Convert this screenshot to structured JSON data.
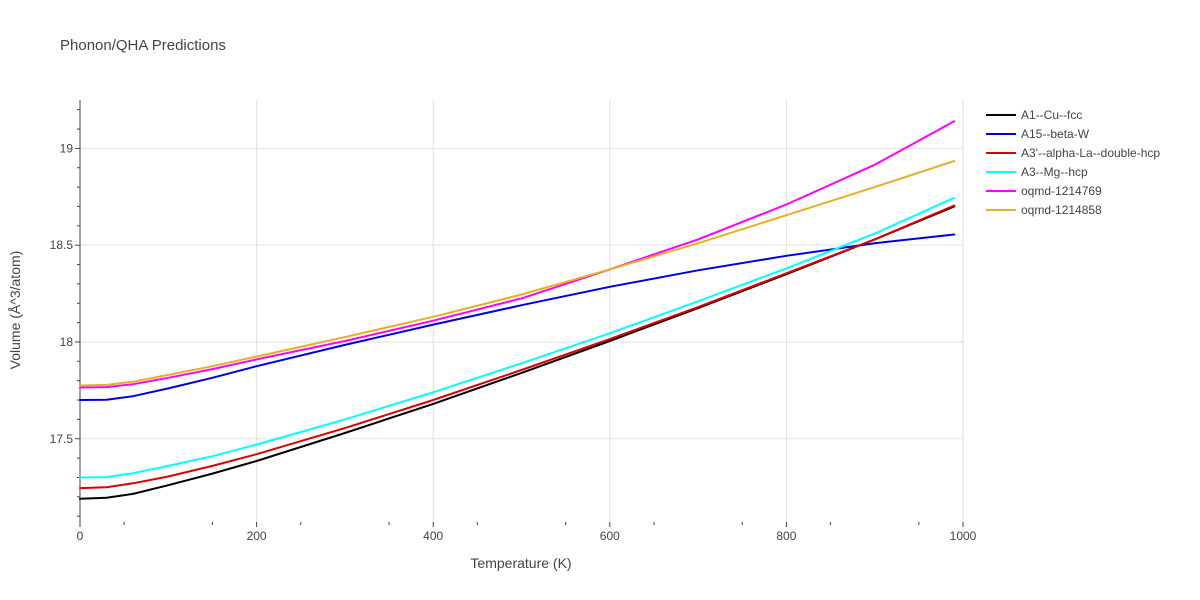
{
  "chart_data": {
    "type": "line",
    "title": "Phonon/QHA Predictions",
    "xlabel": "Temperature (K)",
    "ylabel": "Volume (Å^3/atom)",
    "xlim": [
      0,
      1000
    ],
    "ylim": [
      17.07,
      19.25
    ],
    "x_ticks": [
      {
        "value": 0,
        "label": "0"
      },
      {
        "value": 200,
        "label": "200"
      },
      {
        "value": 400,
        "label": "400"
      },
      {
        "value": 600,
        "label": "600"
      },
      {
        "value": 800,
        "label": "800"
      },
      {
        "value": 1000,
        "label": "1000"
      }
    ],
    "y_ticks": [
      {
        "value": 17.5,
        "label": "17.5"
      },
      {
        "value": 18,
        "label": "18"
      },
      {
        "value": 18.5,
        "label": "18.5"
      },
      {
        "value": 19,
        "label": "19"
      }
    ],
    "grid": true,
    "legend_position": "right",
    "x": [
      0,
      30,
      60,
      100,
      150,
      200,
      300,
      400,
      500,
      600,
      700,
      800,
      900,
      990
    ],
    "series": [
      {
        "name": "A1--Cu--fcc",
        "color": "#000000",
        "values": [
          17.19,
          17.195,
          17.215,
          17.26,
          17.32,
          17.385,
          17.53,
          17.68,
          17.84,
          18.005,
          18.175,
          18.35,
          18.53,
          18.7
        ]
      },
      {
        "name": "A15--beta-W",
        "color": "#0000dd",
        "values": [
          17.7,
          17.702,
          17.72,
          17.76,
          17.815,
          17.875,
          17.985,
          18.09,
          18.19,
          18.285,
          18.37,
          18.445,
          18.51,
          18.555
        ]
      },
      {
        "name": "A3'--alpha-La--double-hcp",
        "color": "#dd0000",
        "values": [
          17.245,
          17.25,
          17.27,
          17.305,
          17.36,
          17.42,
          17.555,
          17.7,
          17.855,
          18.015,
          18.18,
          18.355,
          18.53,
          18.705
        ]
      },
      {
        "name": "A3--Mg--hcp",
        "color": "#00ffff",
        "values": [
          17.3,
          17.302,
          17.322,
          17.36,
          17.41,
          17.47,
          17.6,
          17.74,
          17.89,
          18.045,
          18.21,
          18.38,
          18.56,
          18.745
        ]
      },
      {
        "name": "oqmd-1214769",
        "color": "#ff00ff",
        "values": [
          17.765,
          17.767,
          17.782,
          17.815,
          17.86,
          17.91,
          18.005,
          18.11,
          18.225,
          18.375,
          18.53,
          18.71,
          18.915,
          19.14
        ]
      },
      {
        "name": "oqmd-1214858",
        "color": "#e6b020",
        "values": [
          17.775,
          17.778,
          17.795,
          17.83,
          17.875,
          17.925,
          18.025,
          18.13,
          18.245,
          18.375,
          18.51,
          18.655,
          18.8,
          18.935
        ]
      }
    ]
  }
}
